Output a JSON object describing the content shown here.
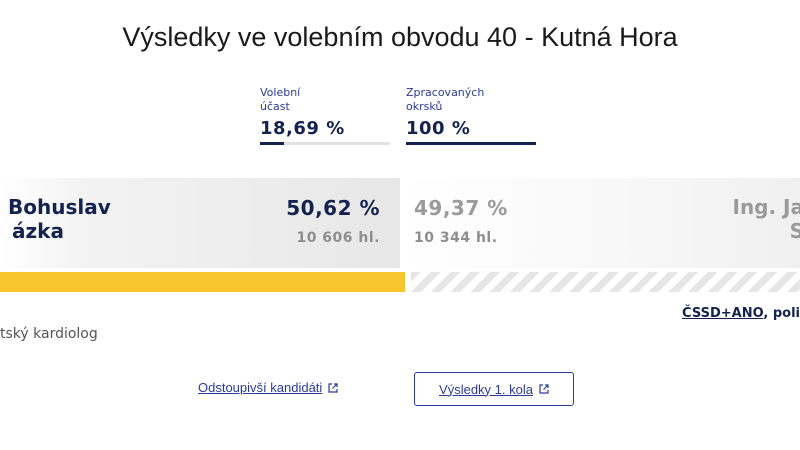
{
  "page": {
    "title": "Výsledky ve volebním obvodu 40 - Kutná Hora"
  },
  "stats": {
    "turnout": {
      "label_line1": "Volební",
      "label_line2": "účast",
      "value": "18,69 %",
      "fraction": 0.1869
    },
    "processed": {
      "label_line1": "Zpracovaných",
      "label_line2": "okrsků",
      "value": "100 %",
      "fraction": 1.0
    }
  },
  "candidates": {
    "left": {
      "name_line1": "Bohuslav",
      "name_line2": "ázka",
      "percent": "50,62 %",
      "votes": "10 606 hl.",
      "share": 0.5062,
      "profession": "tský kardiolog",
      "color": "#f7c52d"
    },
    "right": {
      "name_line1": "Ing. Ja",
      "name_line2": "S",
      "percent": "49,37 %",
      "votes": "10 344 hl.",
      "share": 0.4937,
      "party_link": "ČSSD+ANO",
      "party_rest": ", poli"
    }
  },
  "links": {
    "withdrawn": "Odstoupivší kandidáti",
    "first_round": "Výsledky 1. kola"
  },
  "colors": {
    "navy": "#14224f",
    "link": "#2b3b9a",
    "winner": "#f7c52d",
    "loser_stripe": "#e6e6e6"
  }
}
